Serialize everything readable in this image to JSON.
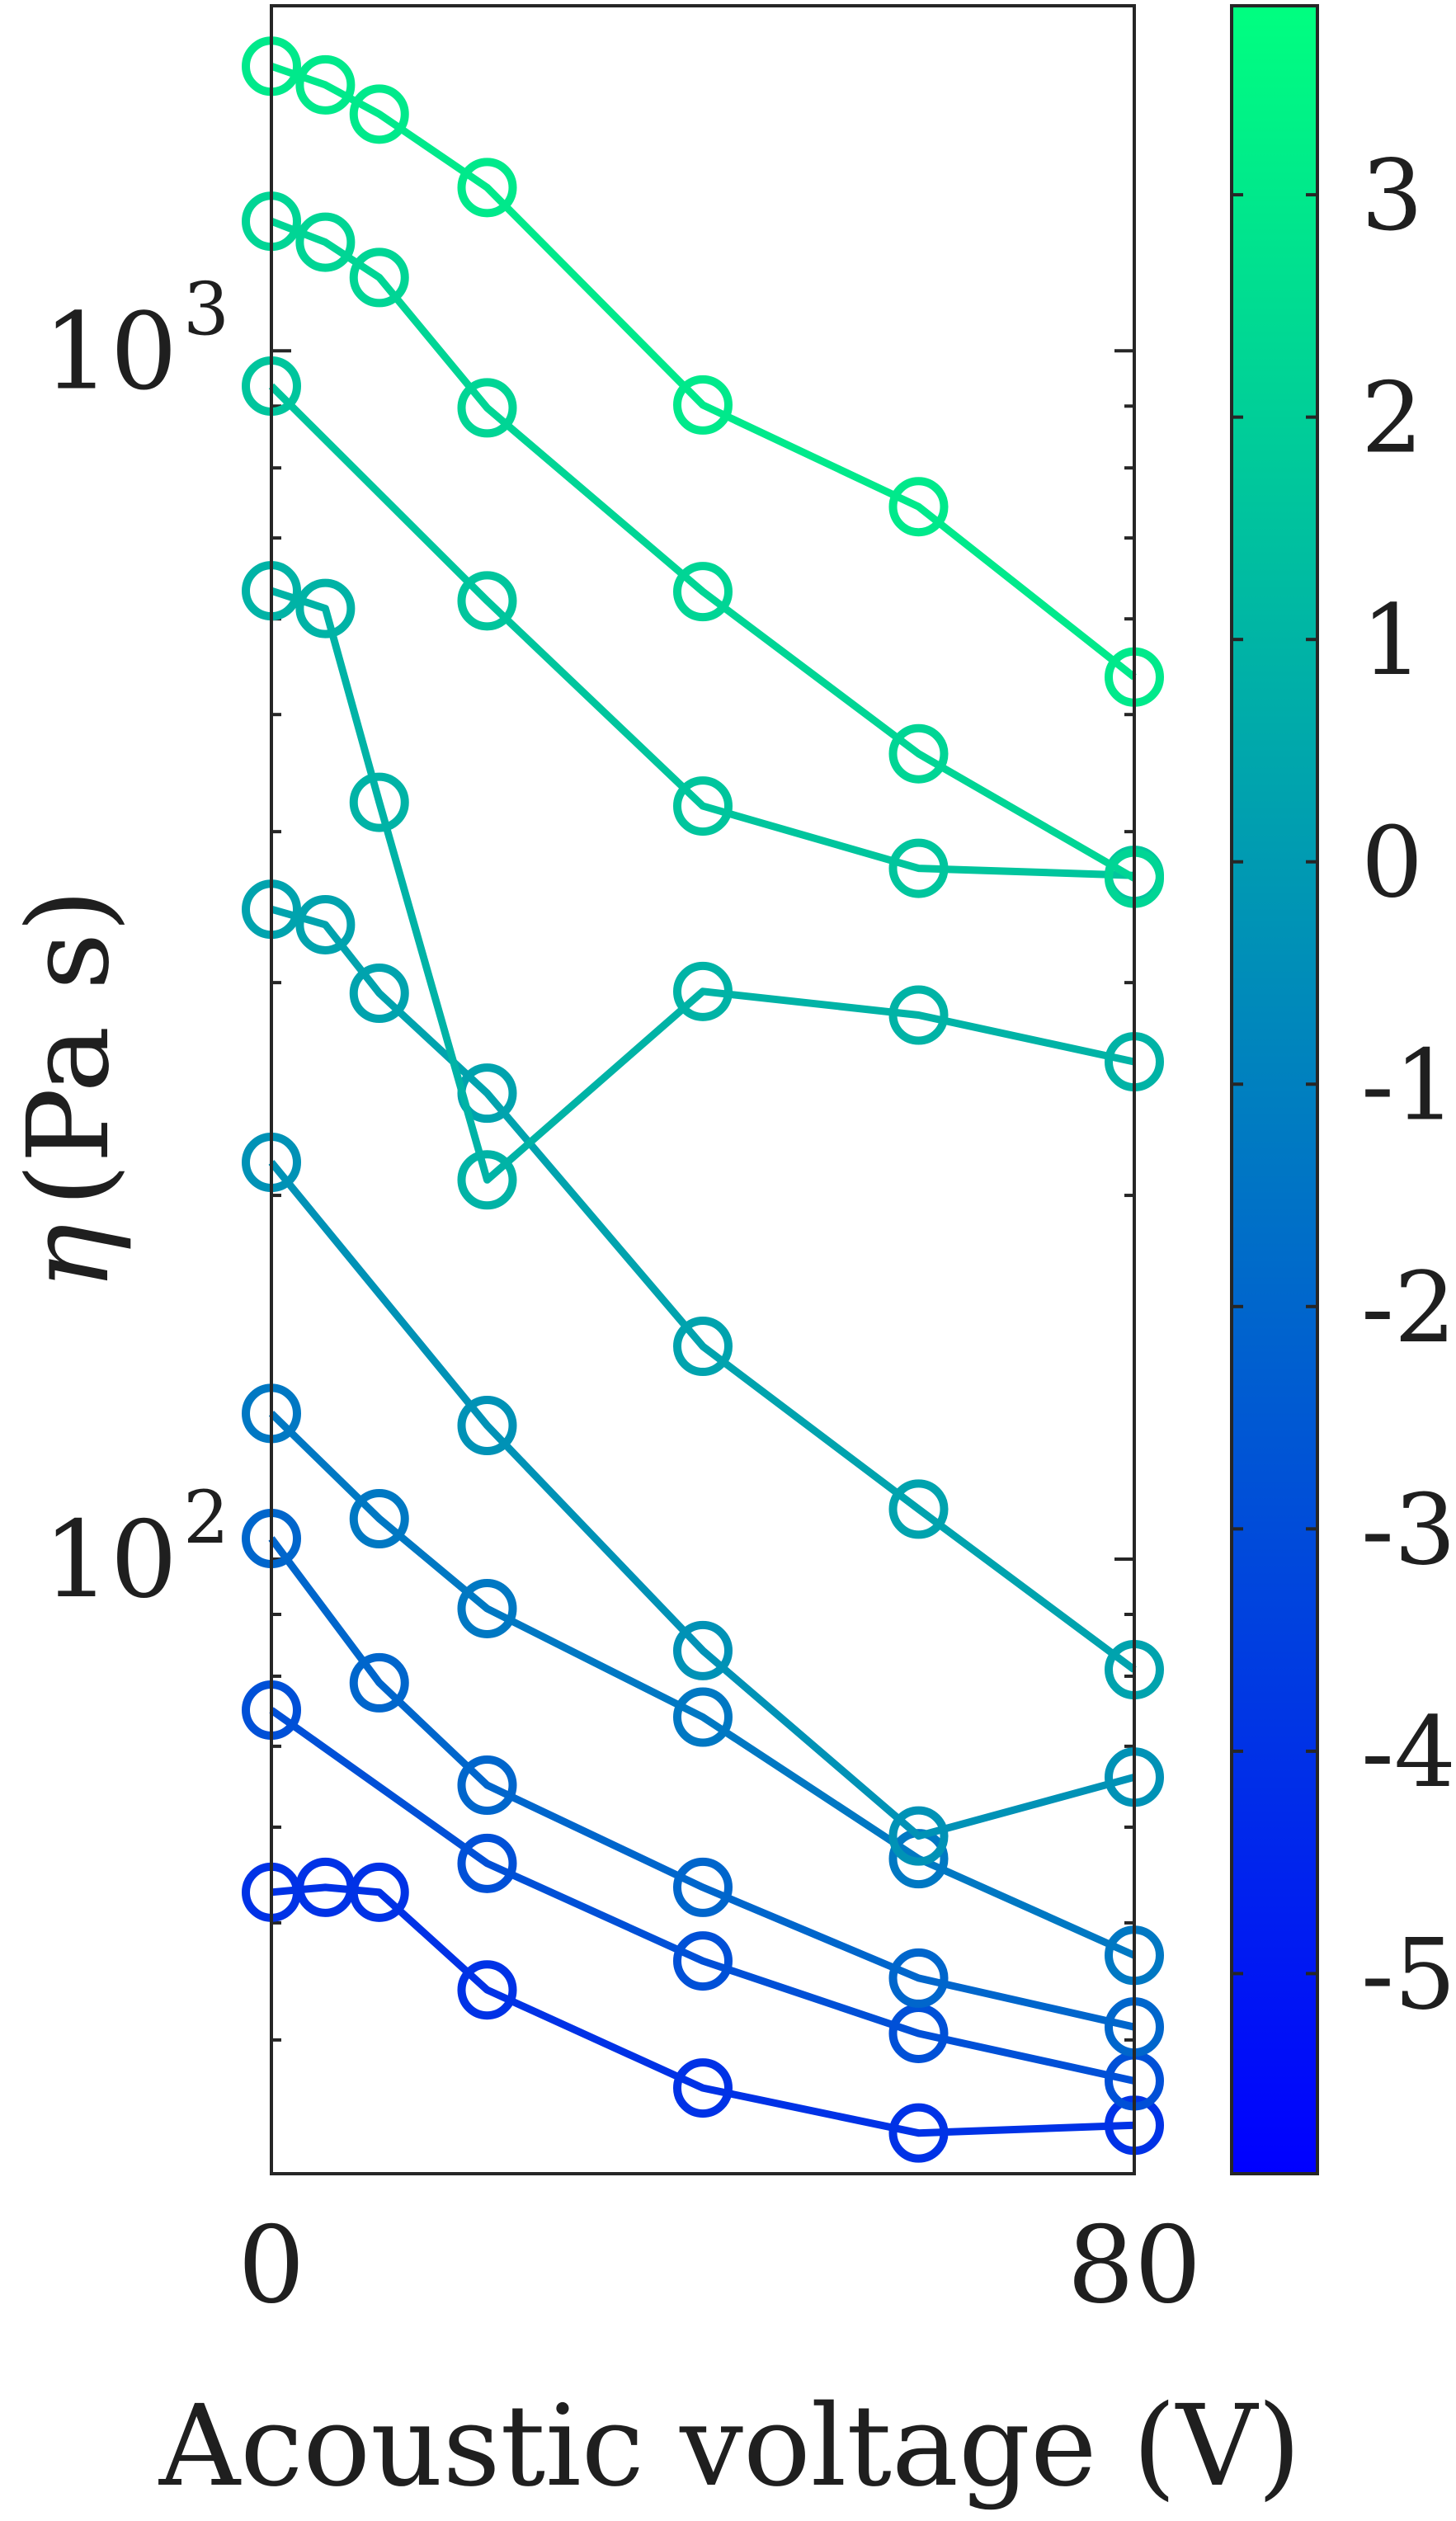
{
  "chart_data": {
    "type": "line",
    "xlabel": "Acoustic voltage (V)",
    "ylabel": "(Pa s)",
    "ylabel_symbol": "η",
    "x_ticks": [
      "0",
      "80"
    ],
    "y_ticks": [
      {
        "value": 100,
        "base": "10",
        "exp": "2"
      },
      {
        "value": 1000,
        "base": "10",
        "exp": "3"
      }
    ],
    "xlim": [
      0,
      80
    ],
    "ylim": [
      31,
      1930
    ],
    "yscale": "log",
    "grid": false,
    "marker": "open-circle",
    "colormap": {
      "from": "#0000ff",
      "to": "#00ff80"
    },
    "colorbar": {
      "lim": [
        -5.9,
        3.85
      ],
      "ticks": [
        "3",
        "2",
        "1",
        "0",
        "-1",
        "-2",
        "-3",
        "-4",
        "-5"
      ]
    },
    "series": [
      {
        "color_value": -4.0,
        "x": [
          0,
          5,
          10,
          20,
          40,
          60,
          80
        ],
        "y": [
          53,
          53.5,
          53,
          44,
          36.5,
          33.5,
          34
        ]
      },
      {
        "color_value": -2.85,
        "x": [
          0,
          20,
          40,
          60,
          80
        ],
        "y": [
          75,
          56,
          46.5,
          40.5,
          37
        ]
      },
      {
        "color_value": -2.0,
        "x": [
          0,
          10,
          20,
          40,
          60,
          80
        ],
        "y": [
          104,
          79,
          65,
          53.5,
          45,
          41
        ]
      },
      {
        "color_value": -1.3,
        "x": [
          0,
          10,
          20,
          40,
          60,
          80
        ],
        "y": [
          132,
          108,
          91,
          74,
          56.5,
          47
        ]
      },
      {
        "color_value": -0.3,
        "x": [
          0,
          20,
          40,
          60,
          80
        ],
        "y": [
          213,
          129,
          84,
          59,
          66
        ]
      },
      {
        "color_value": 0.35,
        "x": [
          0,
          5,
          10,
          20,
          40,
          60,
          80
        ],
        "y": [
          345,
          335,
          294,
          243,
          150,
          110,
          81
        ]
      },
      {
        "color_value": 0.95,
        "x": [
          0,
          5,
          10,
          20,
          40,
          60,
          80
        ],
        "y": [
          633,
          612,
          423,
          206,
          295,
          282,
          258
        ]
      },
      {
        "color_value": 1.65,
        "x": [
          0,
          20,
          40,
          60,
          80
        ],
        "y": [
          935,
          621,
          420,
          373,
          368
        ]
      },
      {
        "color_value": 2.25,
        "x": [
          0,
          5,
          10,
          20,
          40,
          60,
          80
        ],
        "y": [
          1280,
          1230,
          1150,
          897,
          632,
          464,
          366
        ]
      },
      {
        "color_value": 3.0,
        "x": [
          0,
          5,
          10,
          20,
          40,
          60,
          80
        ],
        "y": [
          1720,
          1660,
          1570,
          1365,
          902,
          743,
          537
        ]
      }
    ]
  }
}
